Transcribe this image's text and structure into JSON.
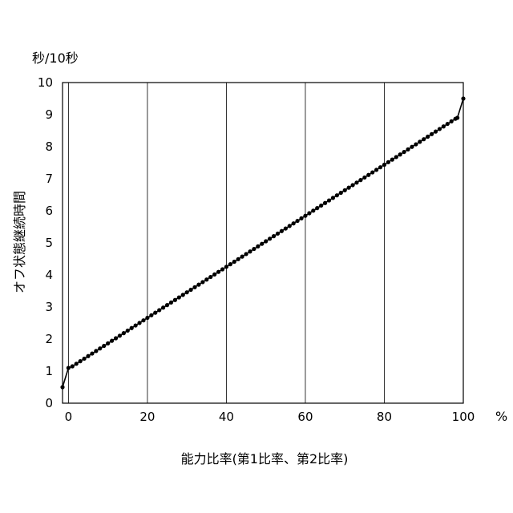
{
  "chart_data": {
    "type": "line",
    "title": "",
    "ylabel": "オフ状態継続時間",
    "yunit": "秒/10秒",
    "xlabel": "能力比率(第1比率、第2比率)",
    "xunit": "%",
    "xlim": [
      -1.5,
      100
    ],
    "ylim": [
      0,
      10
    ],
    "xticks": [
      0,
      20,
      40,
      60,
      80,
      100
    ],
    "yticks": [
      0,
      1,
      2,
      3,
      4,
      5,
      6,
      7,
      8,
      9,
      10
    ],
    "grid": "vertical",
    "series": [
      {
        "line_start": [
          [
            -1.5,
            0.5
          ],
          [
            0,
            1.1
          ],
          [
            1,
            1.15
          ],
          [
            98.5,
            8.9
          ],
          [
            100,
            9.5
          ]
        ],
        "points": {
          "start_points": [
            [
              -1.5,
              0.5
            ],
            [
              0,
              1.1
            ]
          ],
          "linear_x_from": 1,
          "linear_x_to": 98,
          "linear_x_step": 1,
          "linear_y_at_start": 1.15,
          "linear_y_at_end": 8.87,
          "end_points": [
            [
              98.5,
              8.9
            ],
            [
              100,
              9.5
            ]
          ]
        }
      }
    ]
  }
}
